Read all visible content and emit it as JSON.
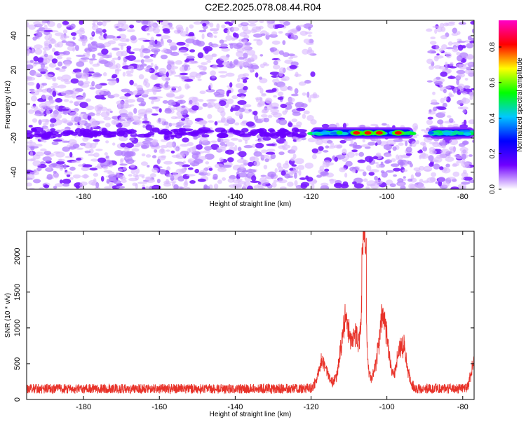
{
  "title": "C2E2.2025.078.08.44.R04",
  "chart_data": [
    {
      "type": "heatmap",
      "title": "C2E2.2025.078.08.44.R04",
      "xlabel": "Height of straight line (km)",
      "ylabel": "Frequency (Hz)",
      "xlim": [
        -195,
        -77
      ],
      "ylim": [
        -50,
        49
      ],
      "x_ticks": [
        -180,
        -160,
        -140,
        -120,
        -100,
        -80
      ],
      "y_ticks": [
        -40,
        -20,
        0,
        20,
        40
      ],
      "colorbar": {
        "label": "Normalized spectral amplitude",
        "range": [
          0.0,
          0.95
        ],
        "ticks": [
          0.0,
          0.2,
          0.4,
          0.6,
          0.8
        ],
        "colormap": [
          "#ffffff",
          "#7000ff",
          "#0000ff",
          "#00c8ff",
          "#00ff00",
          "#ffff00",
          "#ff0000",
          "#ff00c8"
        ]
      },
      "signal_band": {
        "frequency_hz": -17,
        "x_range": [
          -120,
          -93
        ],
        "second_segment_x_range": [
          -89,
          -77
        ],
        "peak_x": [
          -108,
          -105,
          -102,
          -97
        ],
        "peak_amplitude": 0.85
      },
      "gap_x_range": [
        -119,
        -89
      ],
      "gap_frequency_range": [
        -12,
        49
      ]
    },
    {
      "type": "line",
      "xlabel": "Height of straight line (km)",
      "ylabel": "SNR (10 * v/v)",
      "xlim": [
        -195,
        -77
      ],
      "ylim": [
        0,
        2350
      ],
      "x_ticks": [
        -180,
        -160,
        -140,
        -120,
        -100,
        -80
      ],
      "y_ticks": [
        0,
        500,
        1000,
        1500,
        2000
      ],
      "color": "#e8332a",
      "noise_floor": 150,
      "peaks": [
        {
          "x": -117,
          "value": 560
        },
        {
          "x": -111,
          "value": 1100
        },
        {
          "x": -108,
          "value": 800
        },
        {
          "x": -106,
          "value": 2350
        },
        {
          "x": -101,
          "value": 1150
        },
        {
          "x": -96,
          "value": 800
        },
        {
          "x": -77,
          "value": 560
        }
      ]
    }
  ]
}
